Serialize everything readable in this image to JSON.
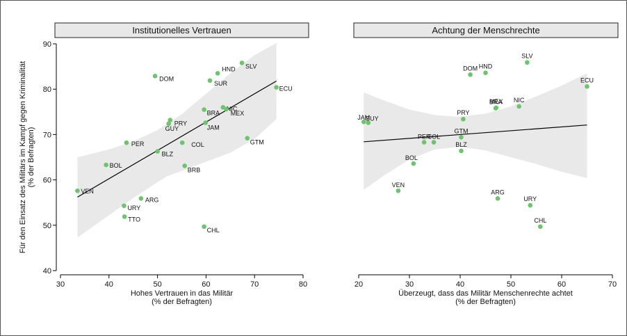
{
  "colors": {
    "point": "#6cc46c",
    "band": "#e9e9e9",
    "strip": "#e8e8e8",
    "line": "#000000"
  },
  "ylabel_lines": [
    "Für den Einsatz des Militärs im Kampf gegen Kriminalität",
    "(% der Befragten)"
  ],
  "chart_data": [
    {
      "type": "scatter",
      "title": "Institutionelles Vertrauen",
      "xlabel_lines": [
        "Hohes Vertrauen in das Militär",
        "(% der Befragten)"
      ],
      "xlim": [
        30,
        80
      ],
      "ylim": [
        40,
        90
      ],
      "xticks": [
        30,
        40,
        50,
        60,
        70,
        80
      ],
      "yticks": [
        40,
        50,
        60,
        70,
        80,
        90
      ],
      "fit_line": [
        [
          33.5,
          56.2
        ],
        [
          74.5,
          81.8
        ]
      ],
      "confidence_band": {
        "x": [
          33.5,
          40,
          45,
          50,
          52,
          55,
          60,
          65,
          70,
          74.5
        ],
        "upper": [
          65.0,
          66.7,
          68.5,
          71.0,
          72.4,
          74.5,
          79.0,
          83.5,
          87.5,
          90.2
        ],
        "lower": [
          47.3,
          52.2,
          56.0,
          59.5,
          60.8,
          62.0,
          64.0,
          66.0,
          69.0,
          73.4
        ]
      },
      "points": [
        {
          "label": "VEN",
          "x": 33.5,
          "y": 57.6
        },
        {
          "label": "BOL",
          "x": 39.4,
          "y": 63.3
        },
        {
          "label": "PER",
          "x": 43.6,
          "y": 68.2
        },
        {
          "label": "URY",
          "x": 43.1,
          "y": 54.3
        },
        {
          "label": "TTO",
          "x": 43.2,
          "y": 51.9
        },
        {
          "label": "ARG",
          "x": 46.6,
          "y": 55.9
        },
        {
          "label": "DOM",
          "x": 49.5,
          "y": 82.9
        },
        {
          "label": "BLZ",
          "x": 50.0,
          "y": 66.3
        },
        {
          "label": "GUY",
          "x": 52.3,
          "y": 72.4
        },
        {
          "label": "PRY",
          "x": 52.6,
          "y": 73.2
        },
        {
          "label": "COL",
          "x": 55.1,
          "y": 68.2
        },
        {
          "label": "BRB",
          "x": 55.6,
          "y": 63.1
        },
        {
          "label": "BRA",
          "x": 59.6,
          "y": 75.5
        },
        {
          "label": "JAM",
          "x": 59.9,
          "y": 72.6
        },
        {
          "label": "CHL",
          "x": 59.6,
          "y": 49.7
        },
        {
          "label": "SUR",
          "x": 60.8,
          "y": 81.9
        },
        {
          "label": "HND",
          "x": 62.4,
          "y": 83.5
        },
        {
          "label": "NIC",
          "x": 63.5,
          "y": 76.0
        },
        {
          "label": "MEX",
          "x": 64.2,
          "y": 75.6
        },
        {
          "label": "SLV",
          "x": 67.4,
          "y": 85.8
        },
        {
          "label": "GTM",
          "x": 68.5,
          "y": 69.2
        },
        {
          "label": "ECU",
          "x": 74.5,
          "y": 80.4
        }
      ]
    },
    {
      "type": "scatter",
      "title": "Achtung der Menschrechte",
      "xlabel_lines": [
        "Überzeugt, dass das Militär Menschenrechte achtet",
        "(% der Befragten)"
      ],
      "xlim": [
        20,
        70
      ],
      "ylim": [
        40,
        90
      ],
      "xticks": [
        20,
        30,
        40,
        50,
        60,
        70
      ],
      "fit_line": [
        [
          21.0,
          68.4
        ],
        [
          65.0,
          72.1
        ]
      ],
      "confidence_band": {
        "x": [
          21,
          25,
          30,
          35,
          40,
          45,
          50,
          55,
          60,
          65
        ],
        "upper": [
          79.3,
          77.5,
          75.5,
          74.3,
          73.9,
          74.6,
          76.2,
          78.4,
          80.8,
          83.5
        ],
        "lower": [
          57.8,
          61.0,
          64.5,
          66.7,
          67.3,
          66.5,
          65.0,
          63.5,
          61.8,
          60.4
        ]
      },
      "points": [
        {
          "label": "JAM",
          "x": 21.0,
          "y": 72.8
        },
        {
          "label": "GUY",
          "x": 21.9,
          "y": 72.6
        },
        {
          "label": "VEN",
          "x": 27.8,
          "y": 57.6
        },
        {
          "label": "BOL",
          "x": 30.8,
          "y": 63.6
        },
        {
          "label": "PER",
          "x": 32.9,
          "y": 68.3
        },
        {
          "label": "COL",
          "x": 34.8,
          "y": 68.3
        },
        {
          "label": "BLZ",
          "x": 40.2,
          "y": 66.4
        },
        {
          "label": "GTM",
          "x": 40.2,
          "y": 69.4
        },
        {
          "label": "PRY",
          "x": 40.6,
          "y": 73.4
        },
        {
          "label": "DOM",
          "x": 42.0,
          "y": 83.2
        },
        {
          "label": "HND",
          "x": 45.0,
          "y": 83.6
        },
        {
          "label": "BRA",
          "x": 47.0,
          "y": 75.8
        },
        {
          "label": "MEX",
          "x": 47.1,
          "y": 75.9
        },
        {
          "label": "ARG",
          "x": 47.4,
          "y": 55.9
        },
        {
          "label": "NIC",
          "x": 51.6,
          "y": 76.2
        },
        {
          "label": "SLV",
          "x": 53.2,
          "y": 85.9
        },
        {
          "label": "URY",
          "x": 53.8,
          "y": 54.4
        },
        {
          "label": "CHL",
          "x": 55.8,
          "y": 49.7
        },
        {
          "label": "ECU",
          "x": 65.0,
          "y": 80.6
        }
      ]
    }
  ]
}
